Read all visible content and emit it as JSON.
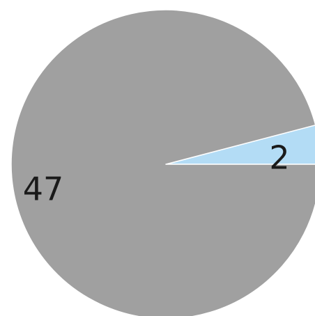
{
  "chart_data": {
    "type": "pie",
    "slices": [
      {
        "label": "2",
        "value": 2,
        "color": "#b3dcf5"
      },
      {
        "label": "47",
        "value": 47,
        "color": "#a0a0a0"
      }
    ],
    "start_angle_deg": 0,
    "direction": "counterclockwise",
    "title": "",
    "legend": "none"
  }
}
